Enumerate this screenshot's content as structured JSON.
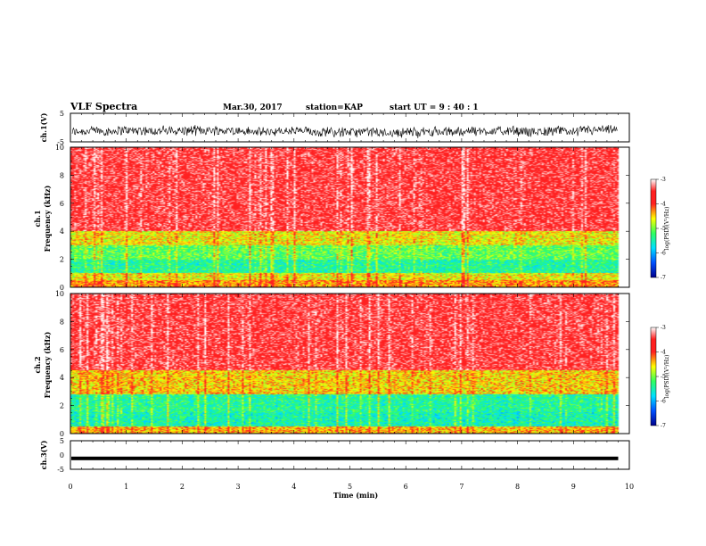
{
  "header": {
    "title": "VLF Spectra",
    "date": "Mar.30, 2017",
    "station": "station=KAP",
    "start": "start  UT =   9 : 40 : 1"
  },
  "chart_data": [
    {
      "type": "line",
      "name": "ch1-waveform",
      "ylabel": "ch.1(V)",
      "ylim": [
        -5,
        5
      ],
      "yticks": [
        "5",
        "-5"
      ],
      "xlim": [
        0,
        10
      ],
      "line_color": "#000000",
      "amplitude_range": [
        -3.5,
        0.5
      ],
      "data_until": 9.8
    },
    {
      "type": "heatmap",
      "name": "ch1-spectrogram",
      "ylabel_channel": "ch.1",
      "ylabel": "Frequency (kHz)",
      "ylim": [
        0,
        10
      ],
      "yticks": [
        "0",
        "2",
        "4",
        "6",
        "8",
        "10"
      ],
      "xlim": [
        0,
        10
      ],
      "data_until": 9.8,
      "colorbar": {
        "label": "log(PSD)(V²/Hz)",
        "range": [
          -7,
          -3
        ],
        "ticks": [
          "-3",
          "-4",
          "-5",
          "-6",
          "-7"
        ]
      },
      "bands": [
        {
          "from": 0,
          "to": 0.5,
          "level": -4.3
        },
        {
          "from": 0.5,
          "to": 1.0,
          "level": -4.6
        },
        {
          "from": 1.0,
          "to": 2.0,
          "level": -5.4
        },
        {
          "from": 2.0,
          "to": 3.0,
          "level": -5.1
        },
        {
          "from": 3.0,
          "to": 4.0,
          "level": -4.6
        },
        {
          "from": 4.0,
          "to": 10.0,
          "level": -3.5
        }
      ]
    },
    {
      "type": "heatmap",
      "name": "ch2-spectrogram",
      "ylabel_channel": "ch.2",
      "ylabel": "Frequency (kHz)",
      "ylim": [
        0,
        10
      ],
      "yticks": [
        "0",
        "2",
        "4",
        "6",
        "8",
        "10"
      ],
      "xlim": [
        0,
        10
      ],
      "data_until": 9.8,
      "colorbar": {
        "label": "log(PSD)(V²/Hz)",
        "range": [
          -7,
          -3
        ],
        "ticks": [
          "-3",
          "-4",
          "-5",
          "-6",
          "-7"
        ]
      },
      "bands": [
        {
          "from": 0,
          "to": 0.5,
          "level": -4.4
        },
        {
          "from": 0.5,
          "to": 1.5,
          "level": -5.5
        },
        {
          "from": 1.5,
          "to": 2.8,
          "level": -5.4
        },
        {
          "from": 2.8,
          "to": 4.5,
          "level": -4.5
        },
        {
          "from": 4.5,
          "to": 10.0,
          "level": -3.5
        }
      ]
    },
    {
      "type": "line",
      "name": "ch3-waveform",
      "ylabel": "ch.3(V)",
      "ylim": [
        -5,
        5
      ],
      "yticks": [
        "5",
        "0",
        "-5"
      ],
      "xlim": [
        0,
        10
      ],
      "xlabel": "Time (min)",
      "xticks": [
        "0",
        "1",
        "2",
        "3",
        "4",
        "5",
        "6",
        "7",
        "8",
        "9",
        "10"
      ],
      "line_color": "#000000",
      "level": -1.2,
      "data_until": 9.8
    }
  ]
}
